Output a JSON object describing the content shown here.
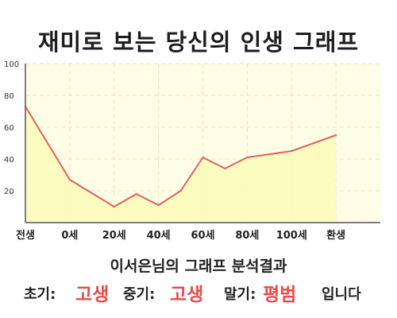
{
  "title": "재미로 보는 당신의 인생 그래프",
  "result": {
    "heading": "이서은님의 그래프 분석결과",
    "early_label": "초기:",
    "early_value": "고생",
    "middle_label": "중기:",
    "middle_value": "고생",
    "late_label": "말기:",
    "late_value": "평범",
    "suffix": "입니다"
  },
  "colors": {
    "line": "#e06060",
    "fill": "#fdfbb8",
    "plot_bg": "#fefde6",
    "grid": "#e6e2c0",
    "highlight": "#e84a4a"
  },
  "chart_data": {
    "type": "area",
    "xlim": [
      0,
      24
    ],
    "ylim": [
      0,
      100
    ],
    "y_ticks": [
      20,
      40,
      60,
      80,
      100
    ],
    "x_ticks": [
      {
        "x": 0,
        "label": "전생"
      },
      {
        "x": 3,
        "label": "0세"
      },
      {
        "x": 6,
        "label": "20세"
      },
      {
        "x": 9,
        "label": "40세"
      },
      {
        "x": 12,
        "label": "60세"
      },
      {
        "x": 15,
        "label": "80세"
      },
      {
        "x": 18,
        "label": "100세"
      },
      {
        "x": 21,
        "label": "환생"
      }
    ],
    "grid": true,
    "series": [
      {
        "x": [
          0,
          3,
          6,
          7.5,
          9,
          10.5,
          12,
          13.5,
          15,
          18,
          21
        ],
        "values": [
          73,
          27,
          10,
          18,
          11,
          20,
          41,
          34,
          41,
          45,
          55
        ]
      }
    ]
  }
}
